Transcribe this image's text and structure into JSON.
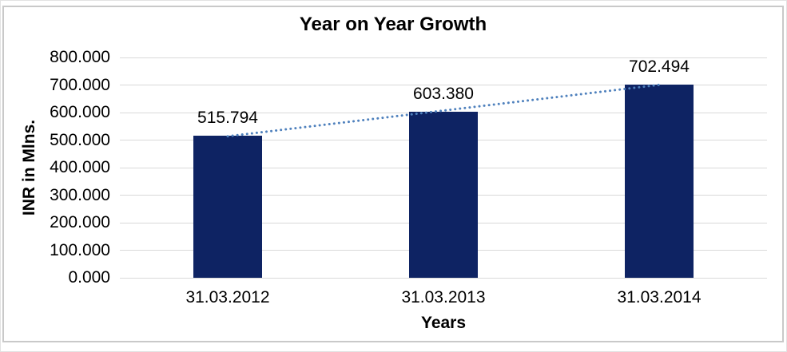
{
  "chart_data": {
    "type": "bar",
    "title": "Year on Year Growth",
    "categories": [
      "31.03.2012",
      "31.03.2013",
      "31.03.2014"
    ],
    "values": [
      515.794,
      603.38,
      702.494
    ],
    "data_labels": [
      "515.794",
      "603.380",
      "702.494"
    ],
    "xlabel": "Years",
    "ylabel": "INR in Mlns.",
    "ylim": [
      0,
      800
    ],
    "ytick_step": 100,
    "yticks": [
      "0.000",
      "100.000",
      "200.000",
      "300.000",
      "400.000",
      "500.000",
      "600.000",
      "700.000",
      "800.000"
    ],
    "grid": true,
    "legend": "none",
    "colors": {
      "bar": "#0e2363",
      "trendline": "#4f81bd",
      "gridline": "#d9d9d9",
      "frame_border": "#c9c9c9",
      "text": "#000000"
    },
    "trendline": {
      "type": "linear",
      "style": "dotted"
    }
  }
}
